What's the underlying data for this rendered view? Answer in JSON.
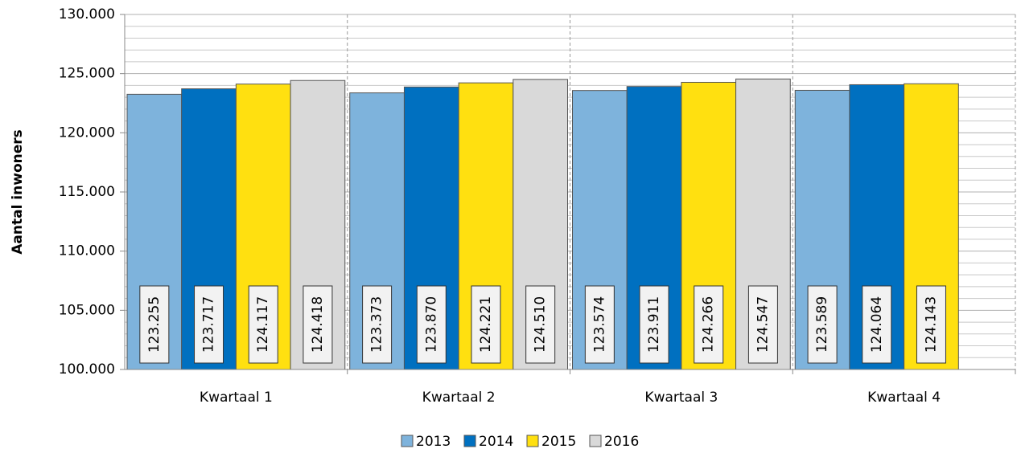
{
  "chart_data": {
    "type": "bar",
    "y_label": "Aantal inwoners",
    "categories": [
      "Kwartaal 1",
      "Kwartaal 2",
      "Kwartaal 3",
      "Kwartaal 4"
    ],
    "series": [
      {
        "name": "2013",
        "color": "#7eb3dc",
        "values": [
          123255,
          123373,
          123574,
          123589
        ],
        "value_labels": [
          "123.255",
          "123.373",
          "123.574",
          "123.589"
        ]
      },
      {
        "name": "2014",
        "color": "#0070c0",
        "values": [
          123717,
          123870,
          123911,
          124064
        ],
        "value_labels": [
          "123.717",
          "123.870",
          "123.911",
          "124.064"
        ]
      },
      {
        "name": "2015",
        "color": "#ffe010",
        "values": [
          124117,
          124221,
          124266,
          124143
        ],
        "value_labels": [
          "124.117",
          "124.221",
          "124.266",
          "124.143"
        ]
      },
      {
        "name": "2016",
        "color": "#d9d9d9",
        "values": [
          124418,
          124510,
          124547,
          null
        ],
        "value_labels": [
          "124.418",
          "124.510",
          "124.547",
          null
        ]
      }
    ],
    "ylim": [
      100000,
      130000
    ],
    "yticks": [
      {
        "value": 100000,
        "label": "100.000"
      },
      {
        "value": 105000,
        "label": "105.000"
      },
      {
        "value": 110000,
        "label": "110.000"
      },
      {
        "value": 115000,
        "label": "115.000"
      },
      {
        "value": 120000,
        "label": "120.000"
      },
      {
        "value": 125000,
        "label": "125.000"
      },
      {
        "value": 130000,
        "label": "130.000"
      }
    ],
    "grid": true,
    "legend": "bottom"
  }
}
